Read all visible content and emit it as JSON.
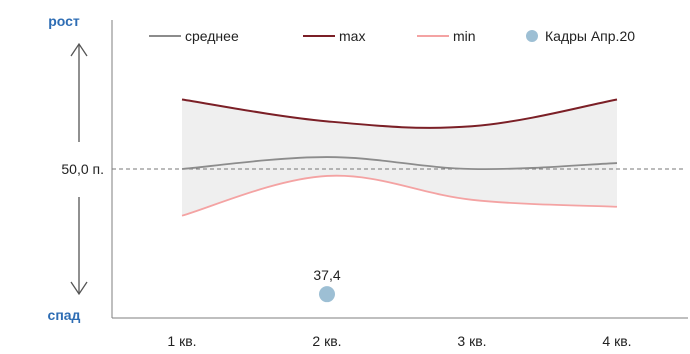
{
  "chart_data": {
    "type": "line",
    "categories": [
      "1 кв.",
      "2 кв.",
      "3 кв.",
      "4 кв."
    ],
    "ylim": [
      35,
      65
    ],
    "reference": {
      "value": 50,
      "label": "50,0 п."
    },
    "y_top_label": "рост",
    "y_bottom_label": "спад",
    "legend_position": "top",
    "series": [
      {
        "name": "среднее",
        "values": [
          50.0,
          51.2,
          50.0,
          50.6
        ],
        "color": "#8c8c8c"
      },
      {
        "name": "max",
        "values": [
          57.0,
          54.8,
          54.3,
          57.0
        ],
        "color": "#7b1f26"
      },
      {
        "name": "min",
        "values": [
          45.3,
          49.3,
          46.9,
          46.2
        ],
        "color": "#f4a3a3"
      }
    ],
    "points": [
      {
        "name": "Кадры Апр.20",
        "category": "2 кв.",
        "value": 37.4,
        "label": "37,4",
        "color": "#9dbfd4"
      }
    ],
    "band_color": "#efefef"
  }
}
